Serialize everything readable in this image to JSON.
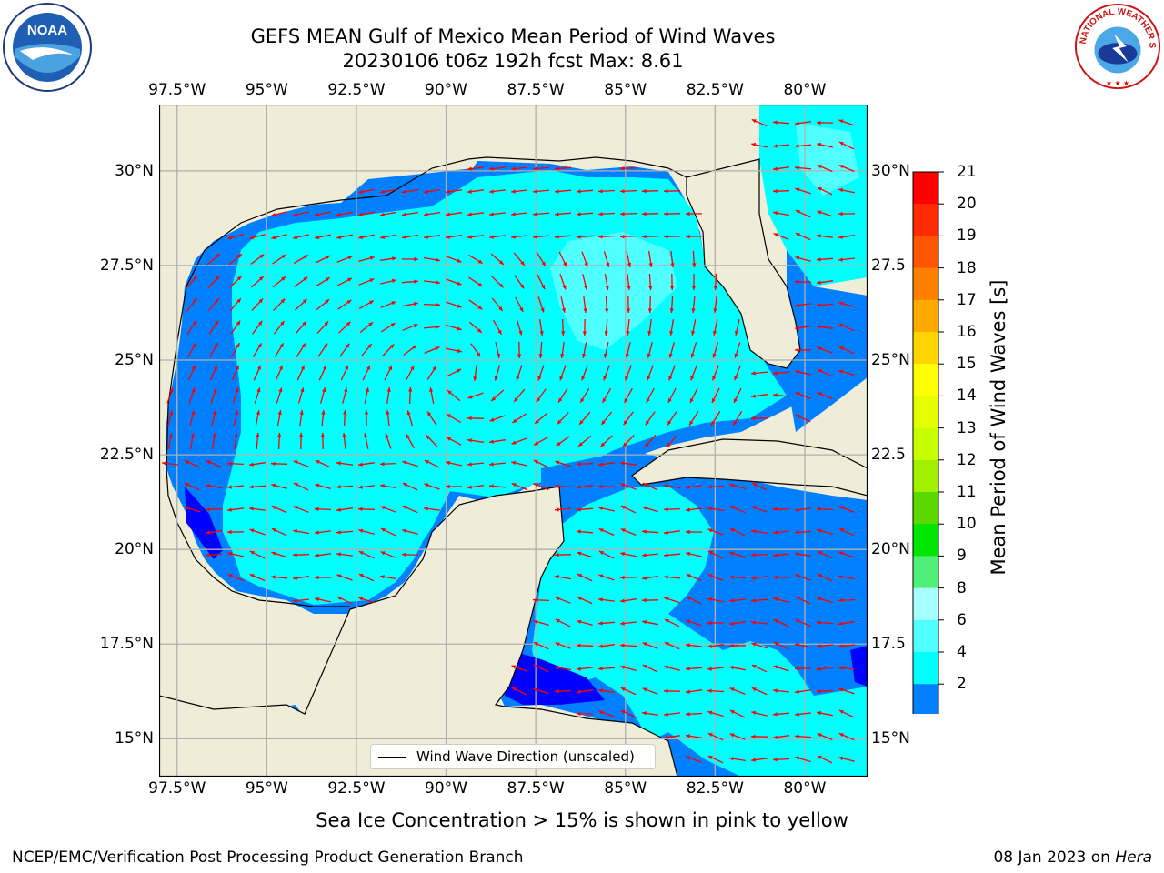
{
  "title": {
    "line1": "GEFS MEAN Gulf of Mexico Mean Period of Wind Waves",
    "line2": "20230106 t06z 192h fcst   Max: 8.61"
  },
  "map": {
    "lon_range": [
      -98.0,
      -78.25
    ],
    "lat_range": [
      14.0,
      31.75
    ],
    "lon_ticks": [
      "97.5°W",
      "95°W",
      "92.5°W",
      "90°W",
      "87.5°W",
      "85°W",
      "82.5°W",
      "80°W"
    ],
    "lon_values": [
      -97.5,
      -95,
      -92.5,
      -90,
      -87.5,
      -85,
      -82.5,
      -80
    ],
    "lat_ticks": [
      "30°N",
      "27.5°N",
      "25°N",
      "22.5°N",
      "20°N",
      "17.5°N",
      "15°N"
    ],
    "lat_values": [
      30,
      27.5,
      25,
      22.5,
      20,
      17.5,
      15
    ],
    "lat_ticks_right": [
      "30°N",
      "27.5",
      "25°N",
      "22.5",
      "20°N",
      "17.5",
      "15°N"
    ],
    "land_color": "#efedd8",
    "gridlines": true,
    "arrow_color": "#ff0000"
  },
  "colorbar": {
    "label": "Mean Period of Wind Waves [s]",
    "ticks": [
      "21",
      "20",
      "19",
      "18",
      "17",
      "16",
      "15",
      "14",
      "13",
      "12",
      "11",
      "10",
      "9",
      "8",
      "6",
      "4",
      "2"
    ],
    "colors": [
      "#ff0000",
      "#ff2a00",
      "#ff5500",
      "#ff8000",
      "#ffaa00",
      "#ffd400",
      "#ffff00",
      "#e6ff00",
      "#c8ff00",
      "#a0f000",
      "#5ad800",
      "#00e600",
      "#50f078",
      "#a8ffff",
      "#50ffff",
      "#00ffff",
      "#0080ff"
    ],
    "under_color": "#0000ff",
    "extend": "min"
  },
  "legend": {
    "label": "Wind Wave Direction (unscaled)"
  },
  "note": "Sea Ice Concentration > 15% is shown in pink to yellow",
  "footer": {
    "left": "NCEP/EMC/Verification Post Processing Product Generation Branch",
    "date": "08 Jan 2023 on",
    "host": "Hera"
  },
  "logos": {
    "noaa_text": "NOAA",
    "nws_text": "NATIONAL WEATHER SERVICE"
  }
}
